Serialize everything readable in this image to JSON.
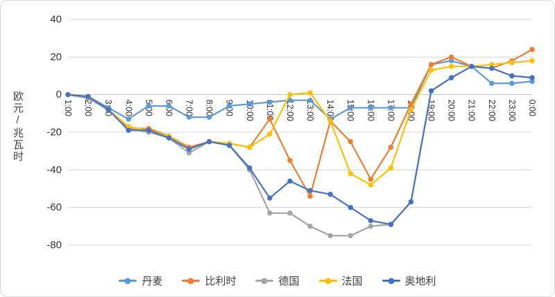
{
  "chart_data": {
    "type": "line",
    "title": "",
    "xlabel": "",
    "ylabel": "欧元/兆瓦时",
    "ylim": [
      -80,
      40
    ],
    "ytick_interval": 20,
    "grid": true,
    "marker": "circle",
    "legend_position": "bottom",
    "categories": [
      "1:00",
      "2:00",
      "3:00",
      "4:00",
      "5:00",
      "6:00",
      "7:00",
      "8:00",
      "9:00",
      "10:00",
      "11:00",
      "12:00",
      "13:00",
      "14:00",
      "15:00",
      "16:00",
      "17:00",
      "18:00",
      "19:00",
      "20:00",
      "21:00",
      "22:00",
      "23:00",
      "0:00"
    ],
    "series": [
      {
        "id": "denmark",
        "name": "丹麦",
        "color": "#5B9BD5",
        "values": [
          0,
          -1,
          -7,
          -13,
          -6,
          -6,
          -12,
          -12,
          -6,
          -5,
          -4,
          -3,
          -3,
          -13,
          -7,
          -7,
          -7,
          -7,
          16,
          18,
          15,
          6,
          6,
          7
        ]
      },
      {
        "id": "belgium",
        "name": "比利时",
        "color": "#ED7D31",
        "values": [
          0,
          -2,
          -8,
          -18,
          -18,
          -22,
          -28,
          -25,
          -26,
          -28,
          -13,
          -35,
          -54,
          -14,
          -25,
          -45,
          -28,
          -5,
          16,
          20,
          15,
          14,
          18,
          24
        ]
      },
      {
        "id": "germany",
        "name": "德国",
        "color": "#A5A5A5",
        "values": [
          0,
          -2,
          -8,
          -18,
          -20,
          -23,
          -31,
          -25,
          -27,
          -40,
          -63,
          -63,
          -70,
          -75,
          -75,
          -70,
          -69,
          -57,
          2,
          9,
          15,
          14,
          10,
          9
        ]
      },
      {
        "id": "france",
        "name": "法国",
        "color": "#FFC000",
        "values": [
          0,
          -1,
          -8,
          -17,
          -19,
          -22,
          -29,
          -25,
          -26,
          -28,
          -21,
          0,
          1,
          -14,
          -42,
          -48,
          -39,
          -8,
          13,
          15,
          15,
          16,
          17,
          18
        ]
      },
      {
        "id": "austria",
        "name": "奥地利",
        "color": "#4472C4",
        "values": [
          0,
          -1,
          -8,
          -19,
          -19,
          -23,
          -29,
          -25,
          -27,
          -39,
          -55,
          -46,
          -51,
          -53,
          -60,
          -67,
          -69,
          -57,
          2,
          9,
          15,
          14,
          10,
          9
        ]
      }
    ]
  },
  "axis": {
    "y_ticks": [
      "40",
      "20",
      "0",
      "-20",
      "-40",
      "-60",
      "-80"
    ]
  }
}
